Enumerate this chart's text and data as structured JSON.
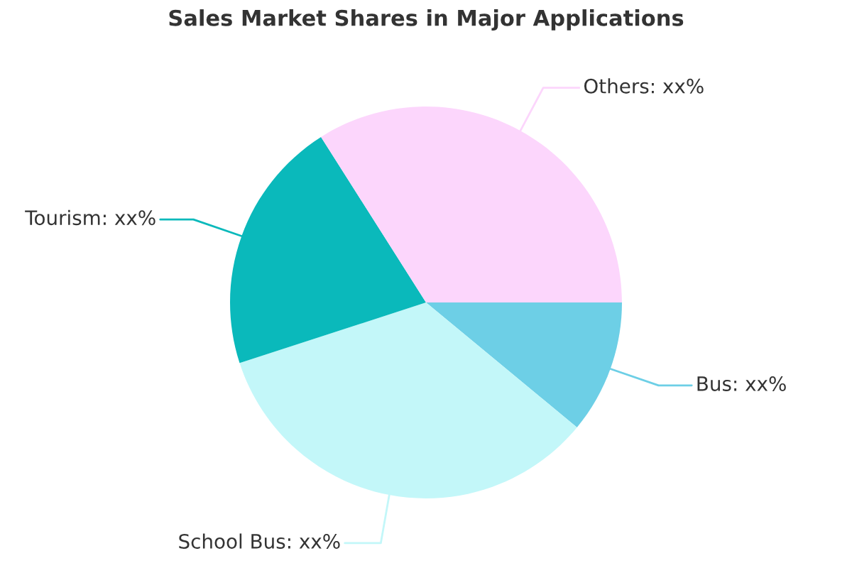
{
  "chart_data": {
    "type": "pie",
    "title": "Sales Market Shares in Major Applications",
    "categories": [
      "Bus",
      "School Bus",
      "Tourism",
      "Others"
    ],
    "values": [
      11,
      34,
      21,
      34
    ],
    "value_labels": [
      "xx%",
      "xx%",
      "xx%",
      "xx%"
    ],
    "colors": [
      "#6dcfe6",
      "#c3f7f9",
      "#0ab9bb",
      "#fcd6fc"
    ],
    "legend": false
  }
}
